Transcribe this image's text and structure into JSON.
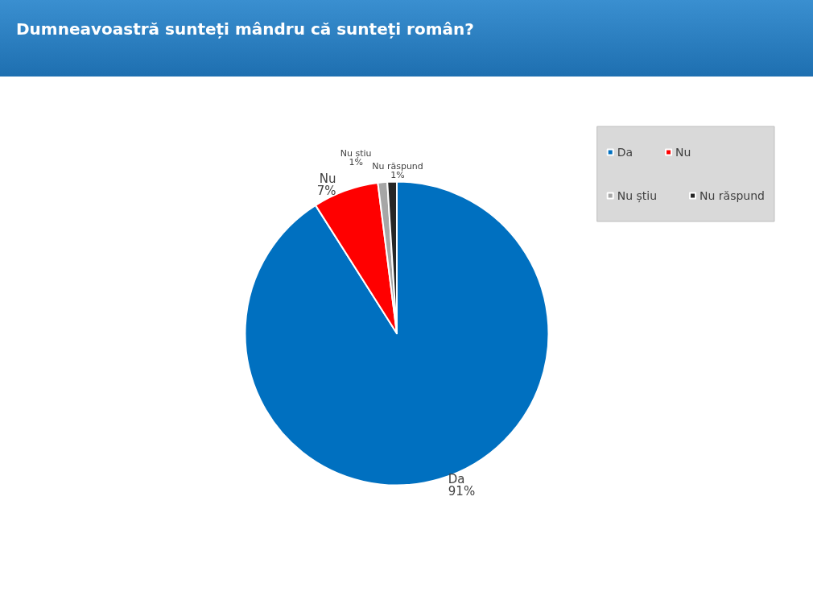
{
  "chart_data": {
    "type": "pie",
    "title": "Dumneavoastră sunteți mândru că sunteți român?",
    "categories": [
      "Da",
      "Nu",
      "Nu știu",
      "Nu răspund"
    ],
    "values": [
      91,
      7,
      1,
      1
    ],
    "colors": [
      "#0070c0",
      "#ff0000",
      "#a6a6a6",
      "#262626"
    ],
    "value_labels": [
      "91%",
      "7%",
      "1%",
      "1%"
    ],
    "legend": "top right"
  }
}
